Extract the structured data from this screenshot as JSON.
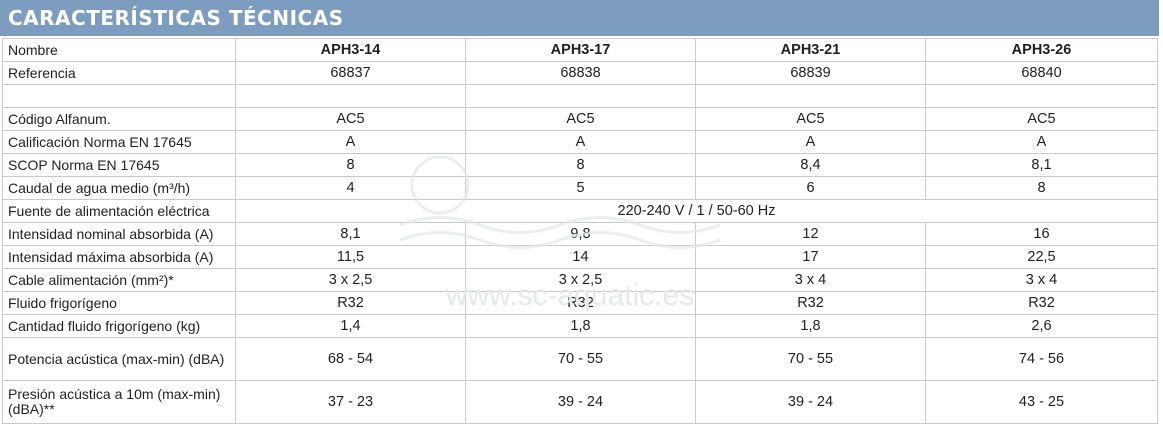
{
  "section_title": "CARACTERÍSTICAS TÉCNICAS",
  "watermark": "www.sc-aquatic.es",
  "colors": {
    "banner": "#7d9dc0",
    "grid": "#c9c9c9",
    "text": "#1f1f1f"
  },
  "table": {
    "rows": [
      {
        "label": "Nombre",
        "values": [
          "APH3-14",
          "APH3-17",
          "APH3-21",
          "APH3-26"
        ]
      },
      {
        "label": "Referencia",
        "values": [
          "68837",
          "68838",
          "68839",
          "68840"
        ]
      },
      {
        "label": "",
        "values": [
          "",
          "",
          "",
          ""
        ]
      },
      {
        "label": "Código Alfanum.",
        "values": [
          "AC5",
          "AC5",
          "AC5",
          "AC5"
        ]
      },
      {
        "label": "Calificación Norma EN 17645",
        "values": [
          "A",
          "A",
          "A",
          "A"
        ]
      },
      {
        "label": "SCOP Norma EN 17645",
        "values": [
          "8",
          "8",
          "8,4",
          "8,1"
        ]
      },
      {
        "label": "Caudal de agua medio (m³/h)",
        "values": [
          "4",
          "5",
          "6",
          "8"
        ]
      },
      {
        "label": "Fuente de alimentación eléctrica",
        "values": [
          "220-240 V / 1 / 50-60 Hz"
        ]
      },
      {
        "label": "Intensidad nominal absorbida (A)",
        "values": [
          "8,1",
          "9,8",
          "12",
          "16"
        ]
      },
      {
        "label": "Intensidad máxima absorbida (A)",
        "values": [
          "11,5",
          "14",
          "17",
          "22,5"
        ]
      },
      {
        "label": "Cable alimentación (mm²)*",
        "values": [
          "3 x 2,5",
          "3 x 2,5",
          "3 x 4",
          "3 x 4"
        ]
      },
      {
        "label": "Fluido frigorígeno",
        "values": [
          "R32",
          "R32",
          "R32",
          "R32"
        ]
      },
      {
        "label": "Cantidad fluido frigorígeno (kg)",
        "values": [
          "1,4",
          "1,8",
          "1,8",
          "2,6"
        ]
      },
      {
        "label": "Potencia acústica (max-min) (dBA)",
        "values": [
          "68 - 54",
          "70 - 55",
          "70 - 55",
          "74 - 56"
        ]
      },
      {
        "label": "Presión acústica a 10m (max-min) (dBA)**",
        "values": [
          "37 - 23",
          "39 - 24",
          "39 - 24",
          "43 - 25"
        ]
      }
    ]
  }
}
